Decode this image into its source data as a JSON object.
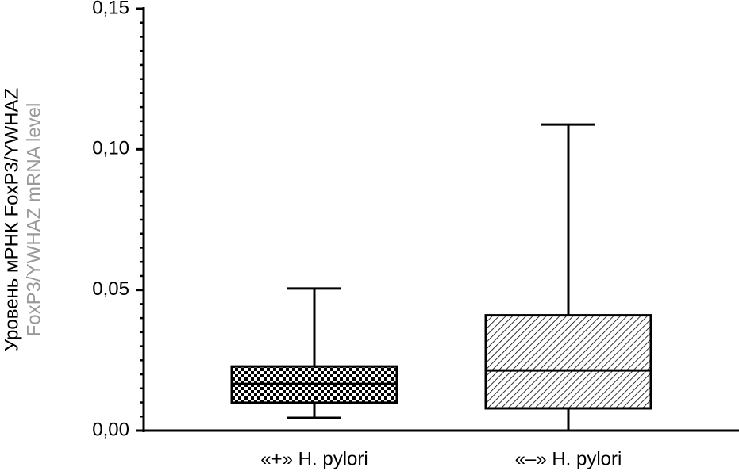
{
  "chart_data": {
    "type": "box",
    "y_label": "Уровень мРНК FoxP3/YWHAZ",
    "y_label_en": "FoxP3/YWHAZ mRNA level",
    "categories": [
      "«+» H. pylori",
      "«–» H. pylori"
    ],
    "boxes": [
      {
        "min": 0.0045,
        "q1": 0.0099,
        "median": 0.0166,
        "q3": 0.0228,
        "max": 0.0505,
        "pattern": "checker"
      },
      {
        "min": 0,
        "q1": 0.0079,
        "median": 0.0214,
        "q3": 0.041,
        "max": 0.1088,
        "pattern": "hatch"
      }
    ],
    "ylim": [
      0,
      0.15
    ],
    "yticks": [
      {
        "value": 0,
        "label": "0,00"
      },
      {
        "value": 0.05,
        "label": "0,05"
      },
      {
        "value": 0.1,
        "label": "0,10"
      },
      {
        "value": 0.15,
        "label": "0,15"
      }
    ],
    "minor_yticks": [
      0.005,
      0.01,
      0.015,
      0.02,
      0.025,
      0.03,
      0.035,
      0.04,
      0.045,
      0.055,
      0.06,
      0.065,
      0.07,
      0.075,
      0.08,
      0.085,
      0.09,
      0.095,
      0.105,
      0.11,
      0.115,
      0.12,
      0.125,
      0.13,
      0.135,
      0.14,
      0.145
    ],
    "color": "#000000",
    "y_label_en_color": "#999999"
  }
}
